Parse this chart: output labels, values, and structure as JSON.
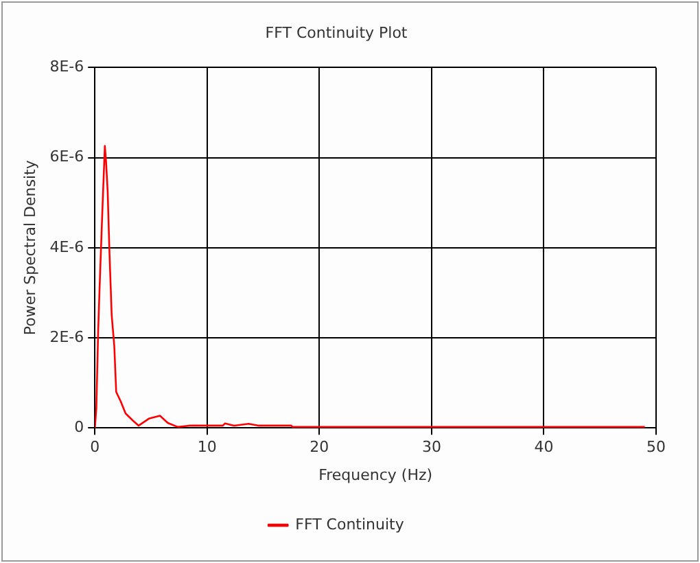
{
  "chart_data": {
    "type": "line",
    "title": "FFT Continuity Plot",
    "xlabel": "Frequency (Hz)",
    "ylabel": "Power Spectral Density",
    "series": [
      {
        "name": "FFT Continuity",
        "color": "#ff0000",
        "x": [
          0,
          0.13,
          0.3,
          0.42,
          0.68,
          0.89,
          1.0,
          1.14,
          1.3,
          1.5,
          1.73,
          1.9,
          2.3,
          2.74,
          3.4,
          3.9,
          4.85,
          5.8,
          6.5,
          7.4,
          8.4,
          11.4,
          11.6,
          12.4,
          13.7,
          14.6,
          17.5,
          17.6,
          30,
          49
        ],
        "values": [
          0,
          4.3e-07,
          2.2e-06,
          3.1e-06,
          4.9e-06,
          6.26e-06,
          5.9e-06,
          5.25e-06,
          3.9e-06,
          2.5e-06,
          1.82e-06,
          8e-07,
          5.9e-07,
          3.2e-07,
          1.6e-07,
          5e-08,
          2.1e-07,
          2.7e-07,
          1.1e-07,
          2e-08,
          5e-08,
          5e-08,
          1e-07,
          5e-08,
          9e-08,
          5e-08,
          5e-08,
          2e-08,
          2e-08,
          2e-08
        ]
      }
    ],
    "xlim": [
      0,
      50
    ],
    "xticks": [
      0,
      10,
      20,
      30,
      40,
      50
    ],
    "ylim": [
      0,
      8e-06
    ],
    "yticks": [
      {
        "value": 0,
        "label": "0"
      },
      {
        "value": 2e-06,
        "label": "2E-6"
      },
      {
        "value": 4e-06,
        "label": "4E-6"
      },
      {
        "value": 6e-06,
        "label": "6E-6"
      },
      {
        "value": 8e-06,
        "label": "8E-6"
      }
    ],
    "grid": true,
    "legend": "bottom",
    "marker": "none",
    "line_style": "solid"
  }
}
